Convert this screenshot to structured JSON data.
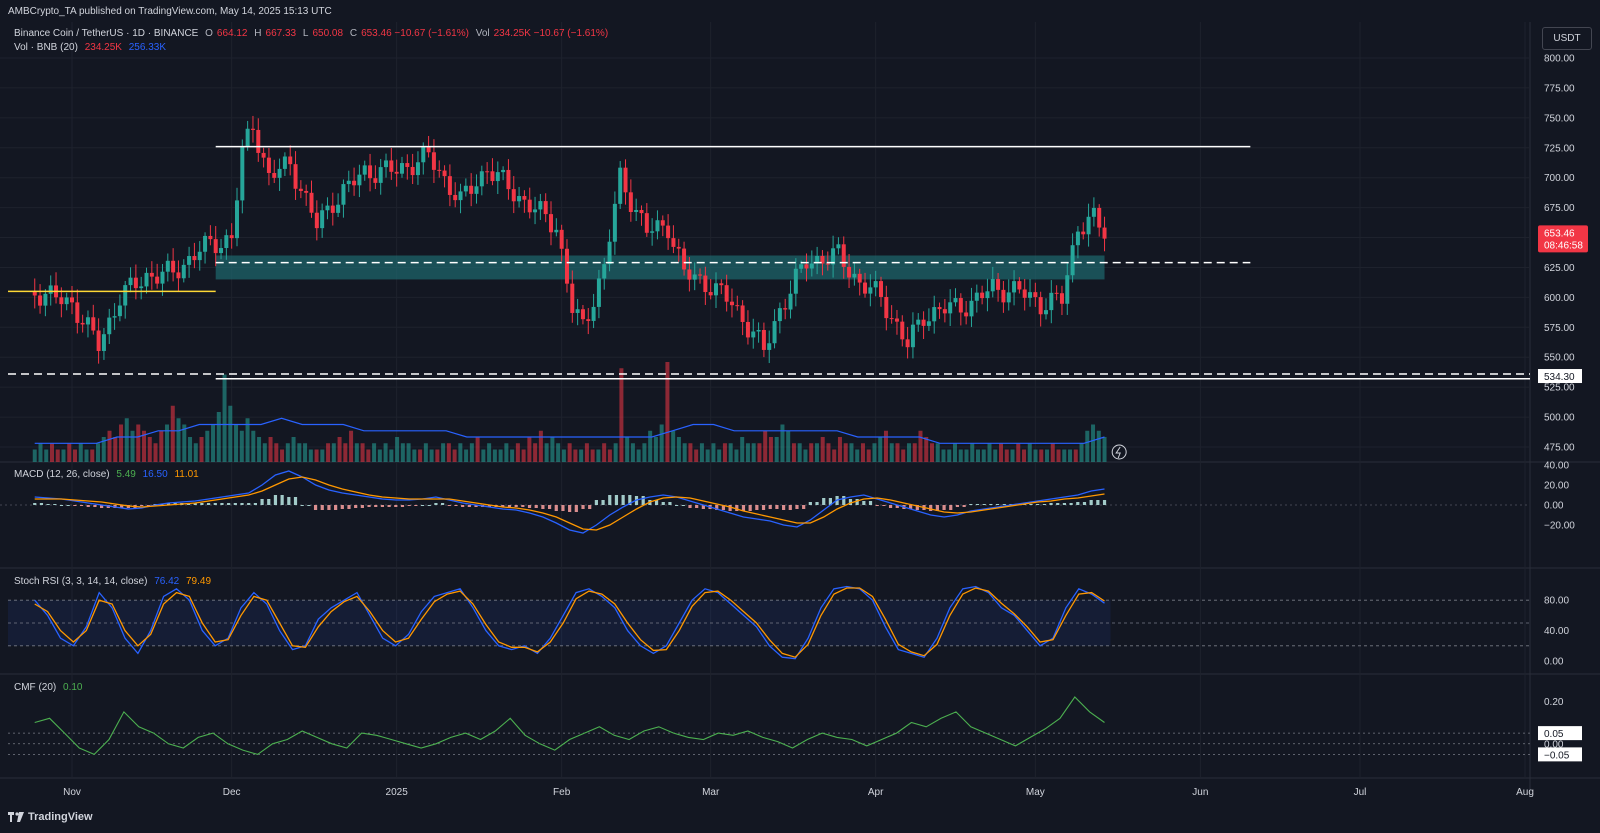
{
  "header": {
    "published": "AMBCrypto_TA published on TradingView.com, May 14, 2025 15:13 UTC"
  },
  "currency_button": "USDT",
  "brand": "TradingView",
  "legends": {
    "symbol": "Binance Coin / TetherUS · 1D · BINANCE",
    "ohlc": [
      {
        "k": "O",
        "v": "664.12"
      },
      {
        "k": "H",
        "v": "667.33"
      },
      {
        "k": "L",
        "v": "650.08"
      },
      {
        "k": "C",
        "v": "653.46 −10.67 (−1.61%)"
      },
      {
        "k": "Vol",
        "v": "234.25K −10.67 (−1.61%)"
      }
    ],
    "vol_label": "Vol · BNB (20)",
    "vol_v1": "234.25K",
    "vol_v2": "256.33K",
    "macd_label": "MACD (12, 26, close)",
    "macd_v1": "5.49",
    "macd_v2": "16.50",
    "macd_v3": "11.01",
    "stoch_label": "Stoch RSI (3, 3, 14, 14, close)",
    "stoch_v1": "76.42",
    "stoch_v2": "79.49",
    "cmf_label": "CMF (20)",
    "cmf_v1": "0.10"
  },
  "colors": {
    "background": "#131722",
    "up": "#26a69a",
    "down": "#f23645",
    "macd_line": "#2962ff",
    "signal_line": "#ff9800",
    "cmf_line": "#4caf50",
    "zone": "#1f6f74",
    "grid": "#1e222d"
  },
  "chart_data": [
    {
      "type": "candlestick",
      "ylim": [
        475,
        800
      ],
      "yticks": [
        "800.00",
        "775.00",
        "750.00",
        "725.00",
        "700.00",
        "675.00",
        "650.00",
        "625.00",
        "600.00",
        "575.00",
        "550.00",
        "525.00",
        "500.00",
        "475.00"
      ],
      "x_labels": [
        "Nov",
        "Dec",
        "2025",
        "Feb",
        "Mar",
        "Apr",
        "May",
        "Jun",
        "Jul",
        "Aug"
      ],
      "last_price": "653.46",
      "countdown": "08:46:58",
      "marked_level": "534.30",
      "levels": [
        {
          "value": 726,
          "style": "solid",
          "color": "#ffffff"
        },
        {
          "value": 629,
          "style": "dashed",
          "color": "#ffffff"
        },
        {
          "value": 536,
          "style": "dashed",
          "color": "#ffffff"
        },
        {
          "value": 532,
          "style": "solid",
          "color": "#ffffff"
        },
        {
          "value": 605,
          "style": "solid",
          "color": "#fdd835"
        }
      ],
      "zone": [
        615,
        635
      ],
      "close_path": [
        [
          "Oct 25",
          605
        ],
        [
          "Nov 1",
          595
        ],
        [
          "Nov 6",
          560
        ],
        [
          "Nov 10",
          600
        ],
        [
          "Nov 15",
          618
        ],
        [
          "Nov 20",
          620
        ],
        [
          "Nov 25",
          640
        ],
        [
          "Dec 1",
          650
        ],
        [
          "Dec 3",
          720
        ],
        [
          "Dec 5",
          745
        ],
        [
          "Dec 8",
          700
        ],
        [
          "Dec 12",
          712
        ],
        [
          "Dec 17",
          660
        ],
        [
          "Dec 20",
          680
        ],
        [
          "Dec 26",
          705
        ],
        [
          "Jan 1",
          706
        ],
        [
          "Jan 7",
          718
        ],
        [
          "Jan 13",
          680
        ],
        [
          "Jan 18",
          708
        ],
        [
          "Jan 25",
          680
        ],
        [
          "Jan 31",
          660
        ],
        [
          "Feb 3",
          590
        ],
        [
          "Feb 5",
          575
        ],
        [
          "Feb 9",
          625
        ],
        [
          "Feb 12",
          700
        ],
        [
          "Feb 17",
          655
        ],
        [
          "Feb 21",
          660
        ],
        [
          "Feb 24",
          620
        ],
        [
          "Mar 1",
          610
        ],
        [
          "Mar 5",
          595
        ],
        [
          "Mar 9",
          570
        ],
        [
          "Mar 11",
          555
        ],
        [
          "Mar 14",
          590
        ],
        [
          "Mar 19",
          630
        ],
        [
          "Mar 25",
          635
        ],
        [
          "Mar 29",
          612
        ],
        [
          "Apr 2",
          600
        ],
        [
          "Apr 7",
          560
        ],
        [
          "Apr 10",
          585
        ],
        [
          "Apr 14",
          590
        ],
        [
          "Apr 19",
          595
        ],
        [
          "Apr 23",
          608
        ],
        [
          "Apr 28",
          605
        ],
        [
          "May 2",
          595
        ],
        [
          "May 6",
          598
        ],
        [
          "May 9",
          660
        ],
        [
          "May 12",
          665
        ],
        [
          "May 14",
          653.46
        ]
      ]
    },
    {
      "type": "bar",
      "name": "Vol · BNB (20)",
      "x_range": [
        "Oct 25",
        "May 14"
      ],
      "values": [
        2,
        3,
        2,
        3,
        2,
        2,
        3,
        2,
        3,
        2,
        2,
        3,
        4,
        5,
        4,
        6,
        7,
        5,
        6,
        5,
        4,
        3,
        5,
        6,
        9,
        7,
        6,
        4,
        3,
        4,
        5,
        6,
        8,
        14,
        9,
        6,
        5,
        7,
        5,
        4,
        3,
        4,
        3,
        2,
        3,
        4,
        3,
        3,
        2,
        2,
        2,
        3,
        3,
        4,
        3,
        5,
        3,
        3,
        2,
        3,
        2,
        3,
        2,
        4,
        3,
        3,
        2,
        2,
        3,
        2,
        2,
        3,
        3,
        2,
        3,
        2,
        3,
        4,
        2,
        3,
        2,
        2,
        3,
        2,
        3,
        2,
        4,
        3,
        5,
        3,
        4,
        3,
        2,
        3,
        2,
        2,
        3,
        2,
        2,
        3,
        2,
        3,
        15,
        4,
        3,
        2,
        3,
        5,
        4,
        6,
        16,
        5,
        4,
        3,
        3,
        2,
        3,
        2,
        3,
        2,
        3,
        3,
        2,
        4,
        3,
        3,
        3,
        5,
        4,
        4,
        6,
        5,
        3,
        3,
        2,
        3,
        3,
        4,
        3,
        2,
        4,
        3,
        3,
        2,
        3,
        2,
        3,
        4,
        5,
        3,
        3,
        2,
        3,
        3,
        5,
        4,
        3,
        3,
        2,
        2,
        3,
        2,
        2,
        3,
        2,
        2,
        3,
        2,
        3,
        2,
        2,
        3,
        2,
        3,
        2,
        2,
        2,
        3,
        2,
        2,
        2,
        2,
        3,
        5,
        6,
        5,
        4
      ],
      "avg_values": [
        3,
        3,
        3,
        3,
        4,
        4,
        5,
        5,
        6,
        6,
        6,
        6,
        7,
        6,
        6,
        6,
        5,
        5,
        5,
        5,
        5,
        4,
        4,
        4,
        4,
        4,
        4,
        4,
        4,
        4,
        4,
        5,
        6,
        6,
        5,
        5,
        5,
        5,
        5,
        5,
        4,
        4,
        4,
        4,
        3,
        3,
        3,
        3,
        3,
        3,
        3,
        3,
        4
      ]
    },
    {
      "type": "line",
      "name": "MACD (12, 26, close)",
      "ylim": [
        -40,
        40
      ],
      "yticks": [
        "40.00",
        "20.00",
        "0.00",
        "−20.00"
      ],
      "x_range": [
        "Oct 25",
        "May 14"
      ],
      "series": [
        {
          "name": "MACD",
          "values": [
            8,
            7,
            6,
            4,
            2,
            0,
            -2,
            -4,
            -3,
            0,
            2,
            3,
            4,
            6,
            8,
            10,
            12,
            20,
            30,
            34,
            28,
            20,
            15,
            12,
            10,
            8,
            6,
            5,
            5,
            6,
            8,
            5,
            2,
            0,
            -2,
            -4,
            -5,
            -8,
            -12,
            -18,
            -25,
            -28,
            -20,
            -10,
            -2,
            5,
            8,
            10,
            8,
            4,
            0,
            -4,
            -8,
            -12,
            -14,
            -16,
            -20,
            -22,
            -15,
            -5,
            5,
            8,
            10,
            6,
            2,
            -2,
            -6,
            -10,
            -12,
            -10,
            -6,
            -4,
            -2,
            0,
            2,
            4,
            6,
            8,
            10,
            14,
            16
          ]
        },
        {
          "name": "Signal",
          "values": [
            6,
            6,
            6,
            5,
            4,
            3,
            1,
            -1,
            -2,
            -1,
            0,
            1,
            2,
            4,
            6,
            8,
            10,
            14,
            20,
            26,
            28,
            25,
            20,
            16,
            13,
            10,
            8,
            7,
            6,
            6,
            6,
            6,
            4,
            2,
            0,
            -2,
            -3,
            -5,
            -8,
            -12,
            -18,
            -24,
            -25,
            -20,
            -12,
            -4,
            3,
            7,
            8,
            7,
            4,
            1,
            -2,
            -6,
            -9,
            -12,
            -15,
            -18,
            -18,
            -12,
            -4,
            2,
            6,
            7,
            5,
            2,
            -1,
            -4,
            -7,
            -8,
            -7,
            -5,
            -3,
            -1,
            1,
            3,
            4,
            6,
            7,
            9,
            11
          ]
        }
      ]
    },
    {
      "type": "line",
      "name": "Stoch RSI (3, 3, 14, 14, close)",
      "ylim": [
        0,
        100
      ],
      "yticks": [
        "80.00",
        "40.00",
        "0.00"
      ],
      "bands": [
        20,
        50,
        80
      ],
      "x_range": [
        "Oct 25",
        "May 14"
      ],
      "series": [
        {
          "name": "K",
          "values": [
            80,
            60,
            30,
            20,
            45,
            90,
            70,
            30,
            10,
            40,
            85,
            95,
            80,
            40,
            20,
            30,
            70,
            90,
            75,
            40,
            15,
            20,
            55,
            70,
            80,
            90,
            60,
            30,
            20,
            35,
            65,
            85,
            90,
            95,
            70,
            40,
            20,
            15,
            20,
            10,
            30,
            60,
            90,
            95,
            85,
            70,
            40,
            20,
            10,
            20,
            50,
            80,
            95,
            90,
            75,
            60,
            45,
            20,
            5,
            3,
            30,
            70,
            95,
            98,
            95,
            80,
            45,
            15,
            10,
            5,
            30,
            70,
            95,
            98,
            90,
            70,
            60,
            40,
            20,
            30,
            70,
            95,
            88,
            76
          ]
        },
        {
          "name": "D",
          "values": [
            75,
            65,
            40,
            25,
            40,
            80,
            75,
            40,
            20,
            35,
            75,
            90,
            85,
            50,
            25,
            28,
            60,
            85,
            80,
            50,
            20,
            18,
            45,
            65,
            78,
            85,
            65,
            40,
            25,
            30,
            55,
            78,
            88,
            92,
            75,
            48,
            25,
            18,
            18,
            12,
            25,
            50,
            82,
            92,
            88,
            75,
            50,
            28,
            14,
            15,
            40,
            72,
            90,
            92,
            80,
            65,
            50,
            28,
            10,
            5,
            22,
            60,
            88,
            96,
            96,
            85,
            55,
            22,
            12,
            7,
            22,
            60,
            88,
            96,
            92,
            76,
            62,
            45,
            25,
            28,
            60,
            88,
            90,
            79
          ]
        }
      ]
    },
    {
      "type": "line",
      "name": "CMF (20)",
      "ylim": [
        -0.1,
        0.3
      ],
      "yticks": [
        "0.20",
        "0.05",
        "0.00",
        "−0.05"
      ],
      "x_range": [
        "Oct 25",
        "May 14"
      ],
      "values": [
        0.1,
        0.12,
        0.05,
        -0.02,
        -0.05,
        0.02,
        0.15,
        0.08,
        0.05,
        0.0,
        -0.02,
        0.03,
        0.05,
        0.0,
        -0.03,
        -0.05,
        0.0,
        0.02,
        0.06,
        0.03,
        0.0,
        -0.02,
        0.05,
        0.04,
        0.02,
        0.0,
        -0.02,
        0.0,
        0.03,
        0.05,
        0.02,
        0.06,
        0.12,
        0.04,
        0.0,
        -0.03,
        0.02,
        0.05,
        0.08,
        0.04,
        0.02,
        0.06,
        0.08,
        0.05,
        0.03,
        0.02,
        0.05,
        0.04,
        0.06,
        0.03,
        0.01,
        -0.02,
        0.02,
        0.05,
        0.03,
        0.02,
        -0.01,
        0.02,
        0.05,
        0.1,
        0.08,
        0.12,
        0.15,
        0.08,
        0.05,
        0.02,
        -0.01,
        0.03,
        0.07,
        0.12,
        0.22,
        0.15,
        0.1
      ]
    }
  ]
}
